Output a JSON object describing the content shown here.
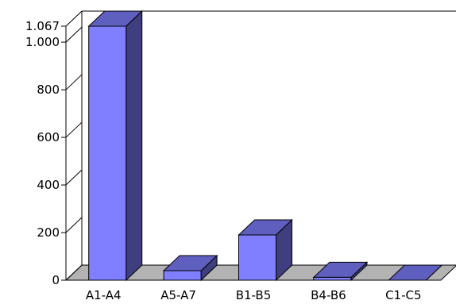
{
  "chart_data": {
    "type": "bar",
    "title": "",
    "xlabel": "",
    "ylabel": "",
    "categories": [
      "A1-A4",
      "A5-A7",
      "B1-B5",
      "B4-B6",
      "C1-C5"
    ],
    "values": [
      1067,
      40,
      190,
      12,
      0
    ],
    "ylim": [
      0,
      1067
    ],
    "yticks": [
      0,
      200,
      400,
      600,
      800,
      1000,
      1067
    ],
    "ytick_labels": [
      "0",
      "200",
      "400",
      "600",
      "800",
      "1.000",
      "1.067"
    ],
    "grid": false,
    "legend": "none",
    "colors": {
      "bar_front": "#7f7fff",
      "bar_side": "#3f3f7f",
      "bar_top": "#5f5fbf",
      "floor": "#b3b3b3",
      "axis": "#000000"
    }
  }
}
